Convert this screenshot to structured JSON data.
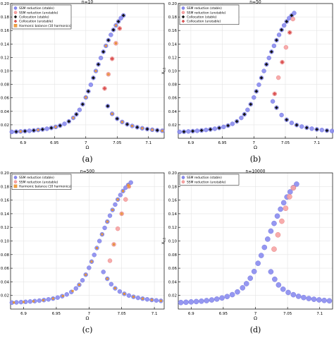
{
  "chart_data": [
    {
      "id": "a",
      "type": "scatter",
      "caption": "(a)",
      "title": "n=10",
      "xlabel": "Ω",
      "ylabel": "x",
      "ylabel_sub": "c,1",
      "xlim": [
        6.88,
        7.125
      ],
      "ylim": [
        0,
        0.2
      ],
      "xticks": [
        6.9,
        6.95,
        7,
        7.05,
        7.1
      ],
      "yticks": [
        0.02,
        0.04,
        0.06,
        0.08,
        0.1,
        0.12,
        0.14,
        0.16,
        0.18,
        0.2
      ],
      "legend_position": "top-left",
      "series": [
        {
          "name": "SSM reduction (stable)",
          "marker": "circle",
          "color": "#8a8cf0",
          "stroke": "#6c6ed8",
          "size": 3.0,
          "x": [
            6.882,
            6.889,
            6.896,
            6.903,
            6.91,
            6.917,
            6.924,
            6.931,
            6.938,
            6.945,
            6.952,
            6.959,
            6.966,
            6.973,
            6.98,
            6.985,
            6.99,
            6.995,
            7.0,
            7.004,
            7.008,
            7.012,
            7.016,
            7.02,
            7.024,
            7.028,
            7.032,
            7.036,
            7.04,
            7.044,
            7.048,
            7.052,
            7.056,
            7.06,
            7.035,
            7.042,
            7.05,
            7.058,
            7.066,
            7.074,
            7.082,
            7.09,
            7.098,
            7.106,
            7.114,
            7.122
          ],
          "y": [
            0.0095,
            0.0098,
            0.0102,
            0.0106,
            0.0111,
            0.0117,
            0.0124,
            0.0132,
            0.0142,
            0.0154,
            0.0169,
            0.0189,
            0.0215,
            0.0251,
            0.0303,
            0.0356,
            0.0422,
            0.0505,
            0.0606,
            0.0697,
            0.0795,
            0.0897,
            0.0999,
            0.1097,
            0.1192,
            0.1284,
            0.1372,
            0.1456,
            0.1535,
            0.1609,
            0.1675,
            0.1733,
            0.1783,
            0.1823,
            0.0478,
            0.0363,
            0.0291,
            0.0242,
            0.0208,
            0.0183,
            0.0164,
            0.0149,
            0.0137,
            0.0127,
            0.0119,
            0.0112
          ]
        },
        {
          "name": "SSM reduction (unstable)",
          "marker": "circle",
          "color": "#f7a3a3",
          "stroke": "#e07878",
          "size": 3.0,
          "x": [
            7.03,
            7.036,
            7.042,
            7.048,
            7.054
          ],
          "y": [
            0.074,
            0.095,
            0.118,
            0.141,
            0.163
          ]
        },
        {
          "name": "Collocation (stable)",
          "marker": "diamond",
          "color": "#111111",
          "stroke": "#111111",
          "size": 2.2,
          "x": [
            6.889,
            6.903,
            6.917,
            6.931,
            6.945,
            6.959,
            6.973,
            6.985,
            6.995,
            7.004,
            7.012,
            7.02,
            7.028,
            7.036,
            7.044,
            7.052,
            7.06,
            7.035,
            7.05,
            7.066,
            7.082,
            7.098,
            7.114
          ],
          "y": [
            0.0098,
            0.0106,
            0.0117,
            0.0132,
            0.0154,
            0.0189,
            0.0251,
            0.0356,
            0.0505,
            0.0697,
            0.0897,
            0.1097,
            0.1284,
            0.1456,
            0.1609,
            0.1733,
            0.1823,
            0.0478,
            0.0291,
            0.0208,
            0.0164,
            0.0137,
            0.0119
          ]
        },
        {
          "name": "Collocation (unstable)",
          "marker": "diamond",
          "color": "#e05050",
          "stroke": "#a02020",
          "size": 2.2,
          "x": [
            7.03,
            7.042,
            7.054
          ],
          "y": [
            0.074,
            0.118,
            0.163
          ]
        },
        {
          "name": "Harmonic balance (10 harmonics)",
          "marker": "square",
          "color": "#f4a040",
          "stroke": "#b86a10",
          "size": 2.6,
          "x": [
            6.896,
            6.924,
            6.952,
            6.98,
            7.0,
            7.016,
            7.032,
            7.048,
            7.042,
            7.058,
            7.074,
            7.09,
            7.106,
            7.122,
            7.036,
            7.048
          ],
          "y": [
            0.0102,
            0.0124,
            0.0169,
            0.0303,
            0.0606,
            0.0999,
            0.1372,
            0.1675,
            0.0363,
            0.0242,
            0.0183,
            0.0149,
            0.0127,
            0.0112,
            0.095,
            0.141
          ]
        }
      ]
    },
    {
      "id": "b",
      "type": "scatter",
      "caption": "(b)",
      "title": "n=50",
      "xlabel": "Ω",
      "ylabel": "x",
      "ylabel_sub": "c,1",
      "xlim": [
        6.88,
        7.125
      ],
      "ylim": [
        0,
        0.2
      ],
      "xticks": [
        6.9,
        6.95,
        7,
        7.05,
        7.1
      ],
      "yticks": [
        0.02,
        0.04,
        0.06,
        0.08,
        0.1,
        0.12,
        0.14,
        0.16,
        0.18,
        0.2
      ],
      "legend_position": "top-left",
      "series": [
        {
          "name": "SSM reduction (stable)",
          "marker": "circle",
          "color": "#8a8cf0",
          "stroke": "#6c6ed8",
          "size": 3.0,
          "x": [
            6.882,
            6.889,
            6.896,
            6.903,
            6.91,
            6.917,
            6.924,
            6.931,
            6.938,
            6.945,
            6.952,
            6.959,
            6.966,
            6.973,
            6.98,
            6.985,
            6.99,
            6.995,
            7.0,
            7.004,
            7.008,
            7.012,
            7.016,
            7.02,
            7.024,
            7.028,
            7.032,
            7.036,
            7.04,
            7.044,
            7.048,
            7.052,
            7.056,
            7.06,
            7.064,
            7.03,
            7.036,
            7.044,
            7.052,
            7.06,
            7.068,
            7.076,
            7.084,
            7.092,
            7.1,
            7.108,
            7.116,
            7.124
          ],
          "y": [
            0.0095,
            0.0098,
            0.0102,
            0.0106,
            0.0111,
            0.0117,
            0.0124,
            0.0132,
            0.0142,
            0.0154,
            0.0169,
            0.0189,
            0.0215,
            0.0251,
            0.0303,
            0.0356,
            0.0422,
            0.0505,
            0.0606,
            0.0697,
            0.0795,
            0.0897,
            0.0999,
            0.1097,
            0.1192,
            0.1284,
            0.1372,
            0.1456,
            0.1535,
            0.1609,
            0.1675,
            0.1733,
            0.1783,
            0.1823,
            0.1858,
            0.0548,
            0.0455,
            0.0345,
            0.0275,
            0.0229,
            0.0197,
            0.0174,
            0.0157,
            0.0143,
            0.0132,
            0.0123,
            0.0115,
            0.0109
          ]
        },
        {
          "name": "SSM reduction (unstable)",
          "marker": "circle",
          "color": "#f7a3a3",
          "stroke": "#e07878",
          "size": 3.0,
          "x": [
            7.033,
            7.039,
            7.045,
            7.051,
            7.057,
            7.062
          ],
          "y": [
            0.066,
            0.09,
            0.113,
            0.135,
            0.157,
            0.177
          ]
        },
        {
          "name": "Collocation (stable)",
          "marker": "diamond",
          "color": "#111111",
          "stroke": "#111111",
          "size": 2.2,
          "x": [
            6.889,
            6.903,
            6.917,
            6.931,
            6.945,
            6.959,
            6.973,
            6.985,
            6.995,
            7.004,
            7.012,
            7.02,
            7.028,
            7.036,
            7.044,
            7.052,
            7.06,
            7.036,
            7.052,
            7.068,
            7.084,
            7.1,
            7.116
          ],
          "y": [
            0.0098,
            0.0106,
            0.0117,
            0.0132,
            0.0154,
            0.0189,
            0.0251,
            0.0356,
            0.0505,
            0.0697,
            0.0897,
            0.1097,
            0.1284,
            0.1456,
            0.1609,
            0.1733,
            0.1823,
            0.0455,
            0.0275,
            0.0197,
            0.0157,
            0.0132,
            0.0115
          ]
        },
        {
          "name": "Collocation (unstable)",
          "marker": "diamond",
          "color": "#e05050",
          "stroke": "#a02020",
          "size": 2.2,
          "x": [
            7.033,
            7.045,
            7.057
          ],
          "y": [
            0.066,
            0.113,
            0.157
          ]
        }
      ]
    },
    {
      "id": "c",
      "type": "scatter",
      "caption": "(c)",
      "title": "n=500",
      "xlabel": "Ω",
      "ylabel": "x",
      "ylabel_sub": "c,1",
      "xlim": [
        6.88,
        7.115
      ],
      "ylim": [
        0,
        0.2
      ],
      "xticks": [
        6.9,
        6.95,
        7,
        7.05,
        7.1
      ],
      "yticks": [
        0.02,
        0.04,
        0.06,
        0.08,
        0.1,
        0.12,
        0.14,
        0.16,
        0.18,
        0.2
      ],
      "legend_position": "top-left",
      "series": [
        {
          "name": "SSM reduction (stable)",
          "marker": "circle",
          "color": "#8a8cf0",
          "stroke": "#6c6ed8",
          "size": 3.0,
          "x": [
            6.882,
            6.889,
            6.896,
            6.903,
            6.91,
            6.917,
            6.924,
            6.931,
            6.938,
            6.945,
            6.952,
            6.959,
            6.966,
            6.973,
            6.98,
            6.985,
            6.99,
            6.995,
            7.0,
            7.004,
            7.008,
            7.012,
            7.016,
            7.02,
            7.024,
            7.028,
            7.032,
            7.036,
            7.04,
            7.044,
            7.048,
            7.052,
            7.056,
            7.06,
            7.064,
            7.022,
            7.028,
            7.034,
            7.04,
            7.047,
            7.054,
            7.061,
            7.068,
            7.075,
            7.082,
            7.089,
            7.096,
            7.103,
            7.11
          ],
          "y": [
            0.0095,
            0.0098,
            0.0102,
            0.0106,
            0.0111,
            0.0117,
            0.0124,
            0.0132,
            0.0142,
            0.0154,
            0.0169,
            0.0189,
            0.0215,
            0.0251,
            0.0303,
            0.0356,
            0.0422,
            0.0505,
            0.0606,
            0.0697,
            0.0795,
            0.0897,
            0.0999,
            0.1097,
            0.1192,
            0.1284,
            0.1372,
            0.1456,
            0.1535,
            0.1609,
            0.1675,
            0.1733,
            0.1783,
            0.1823,
            0.1858,
            0.0545,
            0.0445,
            0.0365,
            0.0305,
            0.0258,
            0.0224,
            0.0199,
            0.018,
            0.0165,
            0.0153,
            0.0143,
            0.0134,
            0.0127,
            0.0121
          ]
        },
        {
          "name": "SSM reduction (unstable)",
          "marker": "circle",
          "color": "#f7a3a3",
          "stroke": "#e07878",
          "size": 3.0,
          "x": [
            7.032,
            7.038,
            7.044,
            7.05,
            7.056,
            7.061
          ],
          "y": [
            0.071,
            0.095,
            0.118,
            0.14,
            0.161,
            0.18
          ]
        },
        {
          "name": "Harmonic balance (10 harmonics)",
          "marker": "square",
          "color": "#f4a040",
          "stroke": "#b86a10",
          "size": 2.6,
          "x": [
            6.885,
            6.9,
            6.915,
            6.93,
            6.945,
            6.96,
            6.975,
            6.985,
            6.995,
            7.004,
            7.012,
            7.02,
            7.028,
            7.036,
            7.044,
            7.052,
            7.06,
            7.028,
            7.04,
            7.054,
            7.068,
            7.082,
            7.096,
            7.11,
            7.038,
            7.05,
            7.061
          ],
          "y": [
            0.0096,
            0.0104,
            0.0114,
            0.0129,
            0.0154,
            0.0193,
            0.0266,
            0.0356,
            0.0505,
            0.0697,
            0.0897,
            0.1097,
            0.1284,
            0.1456,
            0.1609,
            0.1733,
            0.1823,
            0.0445,
            0.0305,
            0.0224,
            0.018,
            0.0153,
            0.0134,
            0.0121,
            0.095,
            0.14,
            0.18
          ]
        }
      ]
    },
    {
      "id": "d",
      "type": "scatter",
      "caption": "(d)",
      "title": "n=10000",
      "xlabel": "Ω",
      "ylabel": "x",
      "ylabel_sub": "c,1",
      "xlim": [
        6.88,
        7.12
      ],
      "ylim": [
        0,
        0.2
      ],
      "xticks": [
        6.9,
        6.95,
        7,
        7.05,
        7.1
      ],
      "yticks": [
        0.02,
        0.04,
        0.06,
        0.08,
        0.1,
        0.12,
        0.14,
        0.16,
        0.18,
        0.2
      ],
      "legend_position": "top-left",
      "series": [
        {
          "name": "SSM reduction (stable)",
          "marker": "circle",
          "color": "#8a8cf0",
          "stroke": "#6c6ed8",
          "size": 3.6,
          "x": [
            6.884,
            6.892,
            6.9,
            6.908,
            6.916,
            6.924,
            6.932,
            6.94,
            6.948,
            6.956,
            6.964,
            6.972,
            6.98,
            6.986,
            6.992,
            6.998,
            7.004,
            7.009,
            7.014,
            7.019,
            7.024,
            7.029,
            7.034,
            7.039,
            7.044,
            7.049,
            7.054,
            7.059,
            7.064,
            7.024,
            7.03,
            7.036,
            7.043,
            7.051,
            7.059,
            7.067,
            7.075,
            7.083,
            7.091,
            7.099,
            7.107,
            7.115
          ],
          "y": [
            0.0096,
            0.01,
            0.0105,
            0.011,
            0.0116,
            0.0124,
            0.0134,
            0.0147,
            0.0163,
            0.0184,
            0.0212,
            0.0252,
            0.0312,
            0.0373,
            0.0453,
            0.0552,
            0.0672,
            0.0787,
            0.0906,
            0.1027,
            0.1145,
            0.1258,
            0.1366,
            0.1467,
            0.1561,
            0.1646,
            0.1721,
            0.1784,
            0.1835,
            0.0548,
            0.0438,
            0.0354,
            0.0292,
            0.0244,
            0.0211,
            0.0187,
            0.0169,
            0.0155,
            0.0144,
            0.0135,
            0.0127,
            0.0121
          ]
        },
        {
          "name": "SSM reduction (unstable)",
          "marker": "circle",
          "color": "#f7a3a3",
          "stroke": "#e07878",
          "size": 3.6,
          "x": [
            7.029,
            7.035,
            7.041,
            7.047,
            7.053,
            7.059
          ],
          "y": [
            0.088,
            0.109,
            0.129,
            0.148,
            0.165,
            0.178
          ]
        }
      ]
    }
  ]
}
